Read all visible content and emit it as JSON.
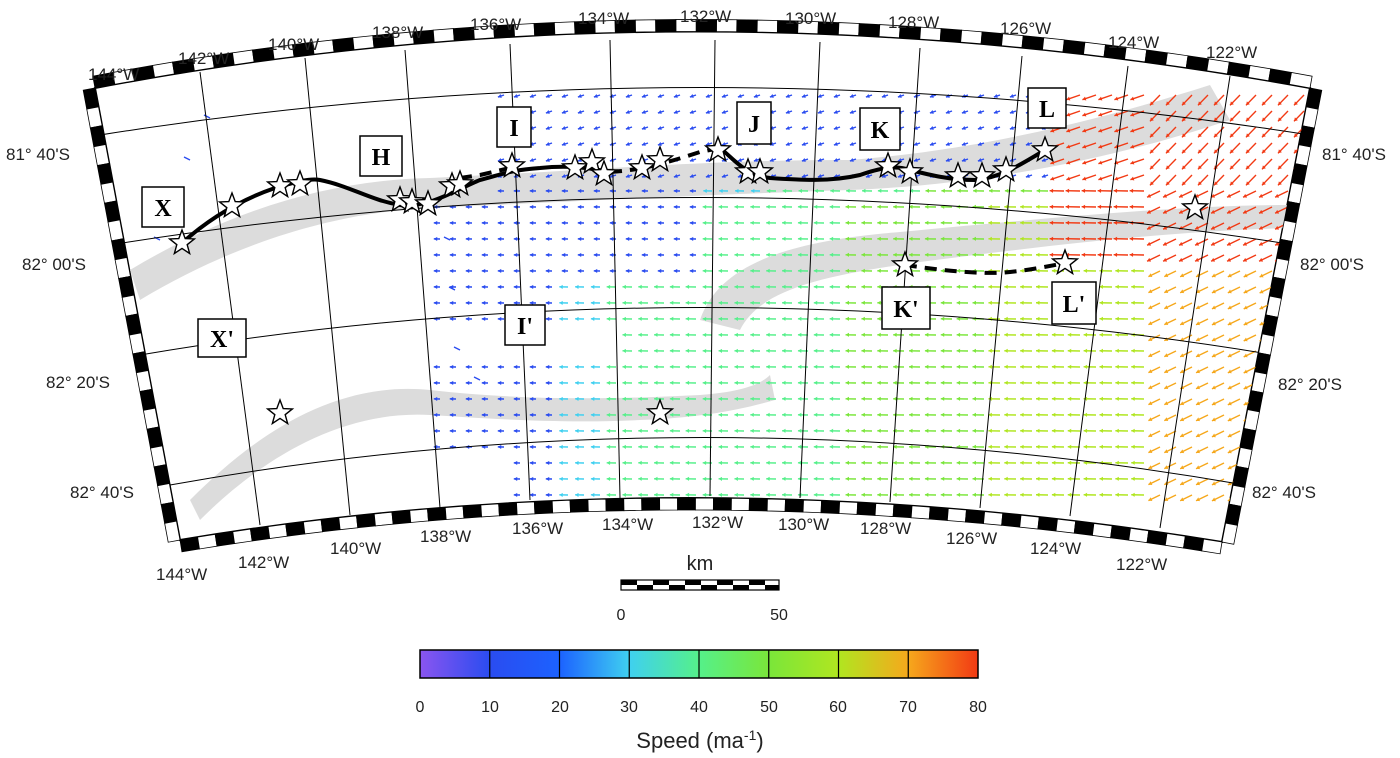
{
  "map": {
    "longitude_labels_top": [
      "144°W",
      "142°W",
      "140°W",
      "138°W",
      "136°W",
      "134°W",
      "132°W",
      "130°W",
      "128°W",
      "126°W",
      "124°W",
      "122°W"
    ],
    "longitude_labels_bottom": [
      "144°W",
      "142°W",
      "140°W",
      "138°W",
      "136°W",
      "134°W",
      "132°W",
      "130°W",
      "128°W",
      "126°W",
      "124°W",
      "122°W"
    ],
    "latitude_labels_left": [
      "81° 40'S",
      "82° 00'S",
      "82° 20'S",
      "82° 40'S"
    ],
    "latitude_labels_right": [
      "81° 40'S",
      "82° 00'S",
      "82° 20'S",
      "82° 40'S"
    ],
    "section_labels": [
      "X",
      "H",
      "I",
      "J",
      "K",
      "L",
      "X'",
      "I'",
      "K'",
      "L'"
    ],
    "colors": {
      "shear_margin": "#dcdcdc",
      "flowline": "#000000",
      "star_fill": "#ffffff"
    }
  },
  "scalebar": {
    "title": "km",
    "min_label": "0",
    "max_label": "50"
  },
  "colorbar": {
    "title": "Speed (ma",
    "title_superscript": "-1",
    "title_suffix": ")",
    "tick_labels": [
      "0",
      "10",
      "20",
      "30",
      "40",
      "50",
      "60",
      "70",
      "80"
    ],
    "colors": [
      "#8a55f0",
      "#2a4cf0",
      "#1c62ff",
      "#3fd0f0",
      "#55f08a",
      "#7ae63a",
      "#b0e620",
      "#f6a81c",
      "#f23a14"
    ]
  }
}
